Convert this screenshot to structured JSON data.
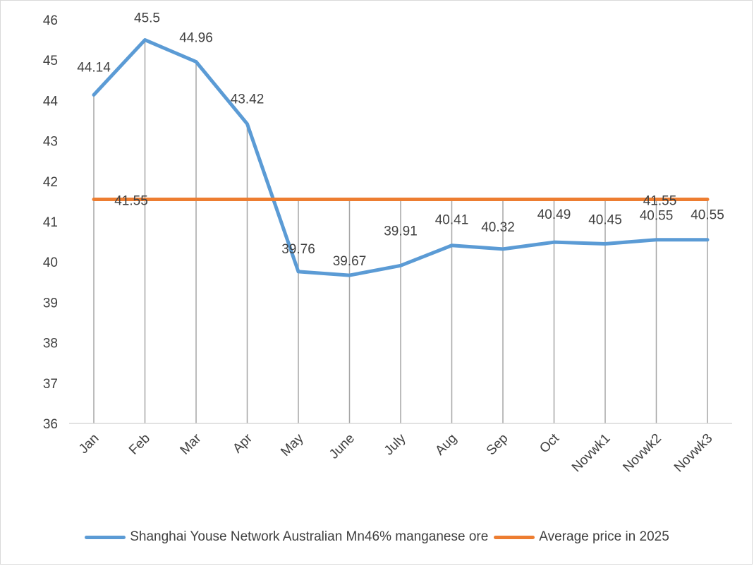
{
  "chart_data": {
    "type": "line",
    "title": "",
    "xlabel": "",
    "ylabel": "",
    "ylim": [
      36,
      46
    ],
    "yticks": [
      36,
      37,
      38,
      39,
      40,
      41,
      42,
      43,
      44,
      45,
      46
    ],
    "grid": "vertical",
    "legend_position": "bottom",
    "categories": [
      "Jan",
      "Feb",
      "Mar",
      "Apr",
      "May",
      "June",
      "July",
      "Aug",
      "Sep",
      "Oct",
      "Novwk1",
      "Novwk2",
      "Novwk3"
    ],
    "series": [
      {
        "name": "Shanghai Youse Network Australian Mn46% manganese ore",
        "color": "#5b9bd5",
        "values": [
          44.14,
          45.5,
          44.96,
          43.42,
          39.76,
          39.67,
          39.91,
          40.41,
          40.32,
          40.49,
          40.45,
          40.55,
          40.55
        ],
        "labels": [
          "44.14",
          "45.5",
          "44.96",
          "43.42",
          "39.76",
          "39.67",
          "39.91",
          "40.41",
          "40.32",
          "40.49",
          "40.45",
          "40.55",
          "40.55"
        ]
      },
      {
        "name": "Average price in 2025",
        "color": "#ed7d31",
        "values": [
          41.55,
          41.55,
          41.55,
          41.55,
          41.55,
          41.55,
          41.55,
          41.55,
          41.55,
          41.55,
          41.55,
          41.55,
          41.55
        ],
        "labels": [
          "41.55",
          "41.55"
        ],
        "label_indices": [
          0,
          11
        ]
      }
    ]
  }
}
